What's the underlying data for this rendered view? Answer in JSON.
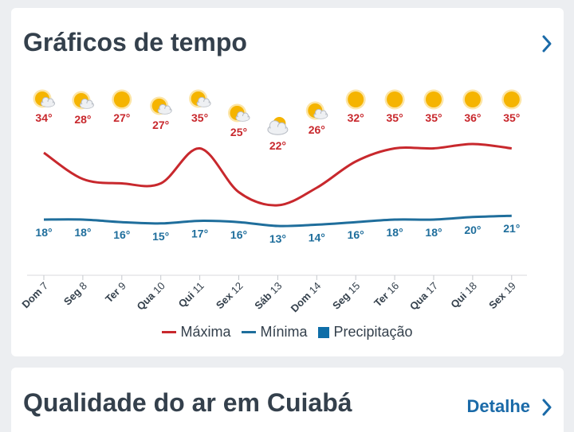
{
  "weather_card": {
    "title": "Gráficos de tempo",
    "legend": {
      "max_label": "Máxima",
      "min_label": "Mínima",
      "precip_label": "Precipitação"
    }
  },
  "air_card": {
    "title": "Qualidade do ar em Cuiabá",
    "detail_label": "Detalhe"
  },
  "colors": {
    "max": "#c8282d",
    "min": "#1f6e9c",
    "precip": "#0f6ea8",
    "title": "#34404c",
    "link": "#1a6aa8"
  },
  "chart_data": {
    "type": "line",
    "x": [
      "Dom 7",
      "Seg 8",
      "Ter 9",
      "Qua 10",
      "Qui 11",
      "Sex 12",
      "Sáb 13",
      "Dom 14",
      "Seg 15",
      "Ter 16",
      "Qua 17",
      "Qui 18",
      "Sex 19"
    ],
    "icons": [
      "partly-cloudy",
      "partly-cloudy",
      "sunny",
      "partly-cloudy",
      "partly-cloudy",
      "partly-cloudy",
      "cloudy",
      "partly-cloudy",
      "sunny",
      "sunny",
      "sunny",
      "sunny",
      "sunny"
    ],
    "series": [
      {
        "name": "Máxima",
        "values": [
          34,
          28,
          27,
          27,
          35,
          25,
          22,
          26,
          32,
          35,
          35,
          36,
          35
        ],
        "labels": [
          "34°",
          "28°",
          "27°",
          "27°",
          "35°",
          "25°",
          "22°",
          "26°",
          "32°",
          "35°",
          "35°",
          "36°",
          "35°"
        ]
      },
      {
        "name": "Mínima",
        "values": [
          18,
          18,
          16,
          15,
          17,
          16,
          13,
          14,
          16,
          18,
          18,
          20,
          21
        ],
        "labels": [
          "18°",
          "18°",
          "16°",
          "15°",
          "17°",
          "16°",
          "13°",
          "14°",
          "16°",
          "18°",
          "18°",
          "20°",
          "21°"
        ]
      }
    ]
  }
}
